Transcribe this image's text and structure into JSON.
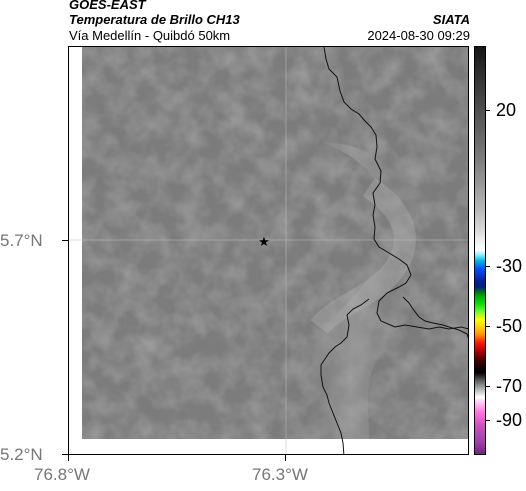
{
  "header": {
    "title": "GOES-EAST",
    "subtitle": "Temperatura de Brillo CH13",
    "region": "Vía Medellín - Quibdó 50km",
    "org": "SIATA",
    "timestamp": "2024-08-30 09:29"
  },
  "map": {
    "lat_labels": [
      "5.7°N",
      "5.2°N"
    ],
    "lon_labels": [
      "76.8°W",
      "76.3°W"
    ],
    "marker_icon": "star-icon",
    "colors": {
      "border": "#000000",
      "frame": "#000000"
    }
  },
  "colorbar": {
    "labels": [
      "20",
      "-30",
      "-50",
      "-70",
      "-90"
    ]
  }
}
